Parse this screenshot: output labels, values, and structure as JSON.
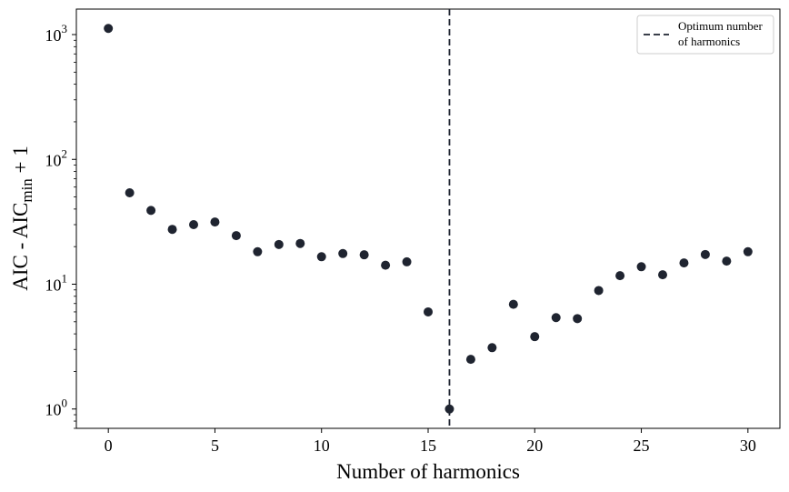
{
  "chart_data": {
    "type": "scatter",
    "xlabel": "Number of harmonics",
    "ylabel": {
      "prefix": "AIC - AIC",
      "subscript": "min",
      "suffix": " + 1"
    },
    "xlim": [
      -1.5,
      31.5
    ],
    "ylim": [
      0.7,
      1600
    ],
    "yscale": "log",
    "xticks": [
      0,
      5,
      10,
      15,
      20,
      25,
      30
    ],
    "yticks": [
      {
        "value": 1,
        "base": "10",
        "exp": "0"
      },
      {
        "value": 10,
        "base": "10",
        "exp": "1"
      },
      {
        "value": 100,
        "base": "10",
        "exp": "2"
      },
      {
        "value": 1000,
        "base": "10",
        "exp": "3"
      }
    ],
    "grid": false,
    "marker_color": "#1f2430",
    "series": [
      {
        "x": [
          0,
          1,
          2,
          3,
          4,
          5,
          6,
          7,
          8,
          9,
          10,
          11,
          12,
          13,
          14,
          15,
          16,
          17,
          18,
          19,
          20,
          21,
          22,
          23,
          24,
          25,
          26,
          27,
          28,
          29,
          30
        ],
        "y": [
          1120,
          54,
          39,
          27.5,
          30,
          31.5,
          24.5,
          18.2,
          20.8,
          21.2,
          16.6,
          17.6,
          17.2,
          14.2,
          15.1,
          6.0,
          1.0,
          2.5,
          3.1,
          6.9,
          3.8,
          5.4,
          5.3,
          8.9,
          11.7,
          13.8,
          11.9,
          14.8,
          17.3,
          15.3,
          18.2
        ]
      }
    ],
    "vline": {
      "x": 16,
      "color": "#1f2430",
      "style": "dashed"
    },
    "legend": {
      "position": "top-right",
      "entries": [
        "Optimum number",
        "of harmonics"
      ]
    }
  }
}
